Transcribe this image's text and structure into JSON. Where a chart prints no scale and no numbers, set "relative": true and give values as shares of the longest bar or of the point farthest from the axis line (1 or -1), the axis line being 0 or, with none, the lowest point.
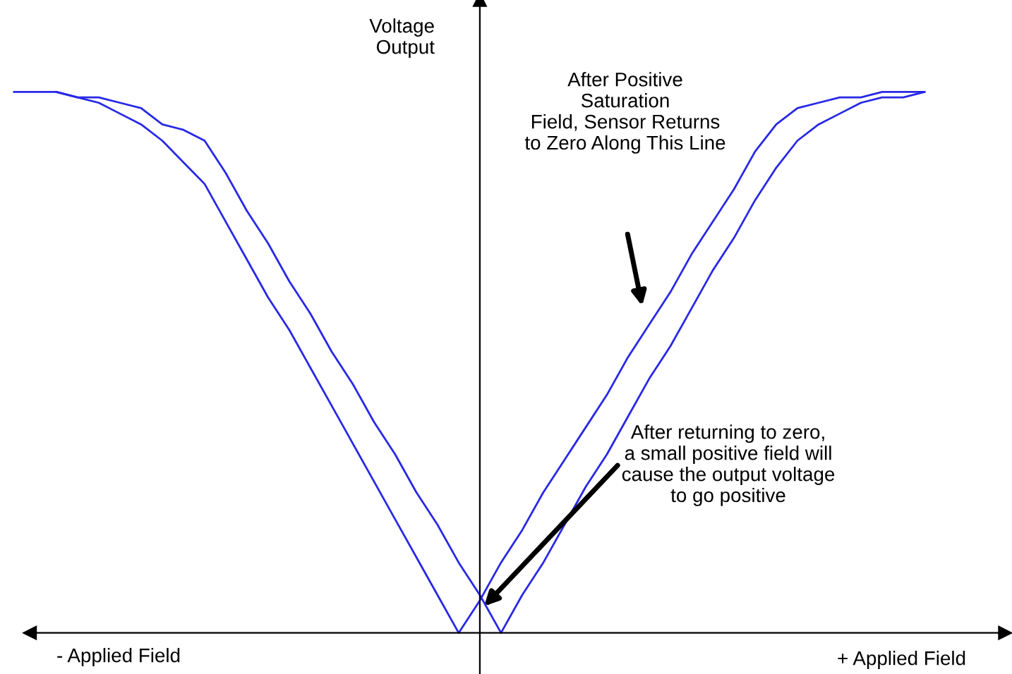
{
  "chart_data": {
    "type": "line",
    "relative": true,
    "ylabel": "Voltage\nOutput",
    "xlabel": "+ Applied Field",
    "categories": [
      null,
      null,
      null,
      null,
      null,
      null,
      null,
      null,
      null,
      null,
      null,
      null,
      null,
      null,
      null,
      null,
      null,
      null,
      null,
      null,
      null,
      null,
      null,
      null,
      null,
      null,
      null,
      null,
      null,
      null,
      null,
      null,
      null,
      null,
      null,
      null,
      null,
      null,
      null,
      null,
      null,
      null,
      null,
      null
    ],
    "series": [
      {
        "color": "#2828e6",
        "values": [
          1.0,
          1.0,
          1.0,
          0.99,
          0.98,
          0.96,
          0.94,
          0.91,
          0.87,
          0.83,
          0.76,
          0.69,
          0.62,
          0.56,
          0.49,
          0.42,
          0.35,
          0.28,
          0.21,
          0.14,
          0.07,
          0.0,
          0.06,
          0.13,
          0.19,
          0.26,
          0.32,
          0.38,
          0.44,
          0.51,
          0.57,
          0.63,
          0.7,
          0.76,
          0.82,
          0.89,
          0.94,
          0.97,
          0.98,
          0.99,
          0.99,
          1.0,
          1.0,
          1.0
        ]
      },
      {
        "color": "#2828e6",
        "values": [
          null,
          null,
          1.0,
          0.99,
          0.99,
          0.98,
          0.97,
          0.94,
          0.93,
          0.91,
          0.85,
          0.78,
          0.72,
          0.65,
          0.59,
          0.52,
          0.46,
          0.39,
          0.33,
          0.26,
          0.2,
          0.13,
          0.07,
          0.0,
          0.07,
          0.13,
          0.2,
          0.27,
          0.33,
          0.4,
          0.47,
          0.53,
          0.6,
          0.67,
          0.73,
          0.8,
          0.86,
          0.91,
          0.94,
          0.96,
          0.98,
          0.99,
          0.99,
          1.0
        ]
      }
    ],
    "annotations": [
      "After Positive\nSaturation\nField, Sensor Returns\nto Zero Along This Line",
      "After returning to zero,\na small positive field will\ncause the output voltage\nto go positive",
      "- Applied Field"
    ],
    "legend": false,
    "marker": "none",
    "line_style": "solid"
  }
}
